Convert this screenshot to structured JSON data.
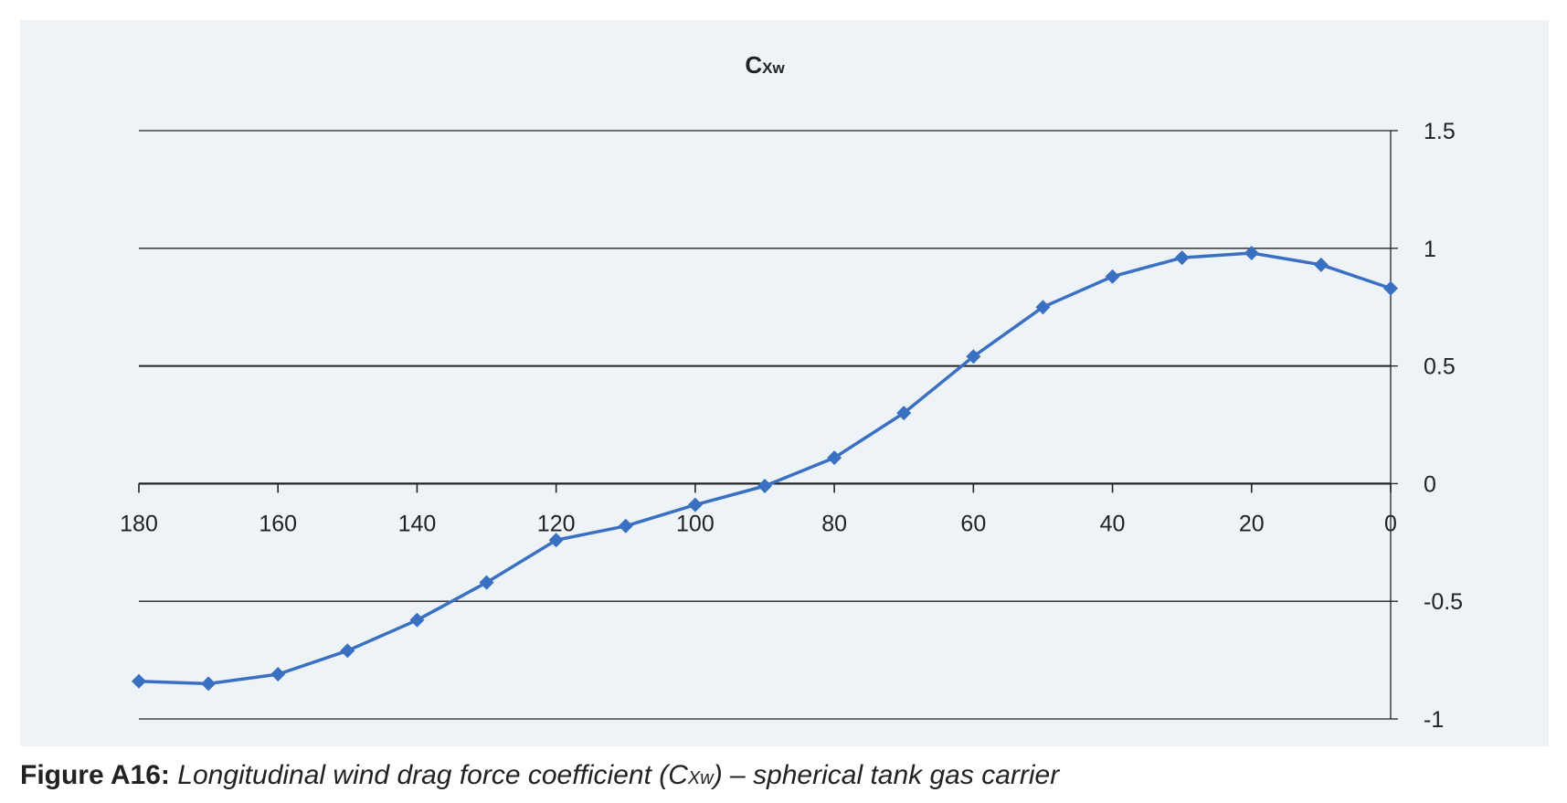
{
  "chart_data": {
    "type": "line",
    "title": {
      "main": "C",
      "sub": "Xw"
    },
    "x": [
      180,
      170,
      160,
      150,
      140,
      130,
      120,
      110,
      100,
      90,
      80,
      70,
      60,
      50,
      40,
      30,
      20,
      10,
      0
    ],
    "series": [
      {
        "values": [
          -0.84,
          -0.85,
          -0.81,
          -0.71,
          -0.58,
          -0.42,
          -0.24,
          -0.18,
          -0.09,
          -0.01,
          0.11,
          0.3,
          0.54,
          0.75,
          0.88,
          0.96,
          0.98,
          0.93,
          0.83
        ],
        "color": "#3a70c2",
        "marker": "diamond"
      }
    ],
    "xlim": [
      180,
      0
    ],
    "x_reversed": true,
    "x_ticks": [
      180,
      160,
      140,
      120,
      100,
      80,
      60,
      40,
      20,
      0
    ],
    "ylim": [
      -1,
      1.5
    ],
    "y_ticks": [
      1.5,
      1,
      0.5,
      0,
      -0.5,
      -1
    ],
    "y_axis_side": "right",
    "x_axis_at": 0,
    "gridlines": "horizontal",
    "legend": "none",
    "xlabel": "",
    "ylabel": ""
  },
  "caption": {
    "label": "Figure A16:",
    "text_before": "Longitudinal wind drag force coefficient (C",
    "sub": "Xw",
    "text_after": ") – spherical tank gas carrier"
  },
  "colors": {
    "panel_background": "#eef3f8",
    "series": "#3a70c2",
    "axis": "#222222"
  }
}
